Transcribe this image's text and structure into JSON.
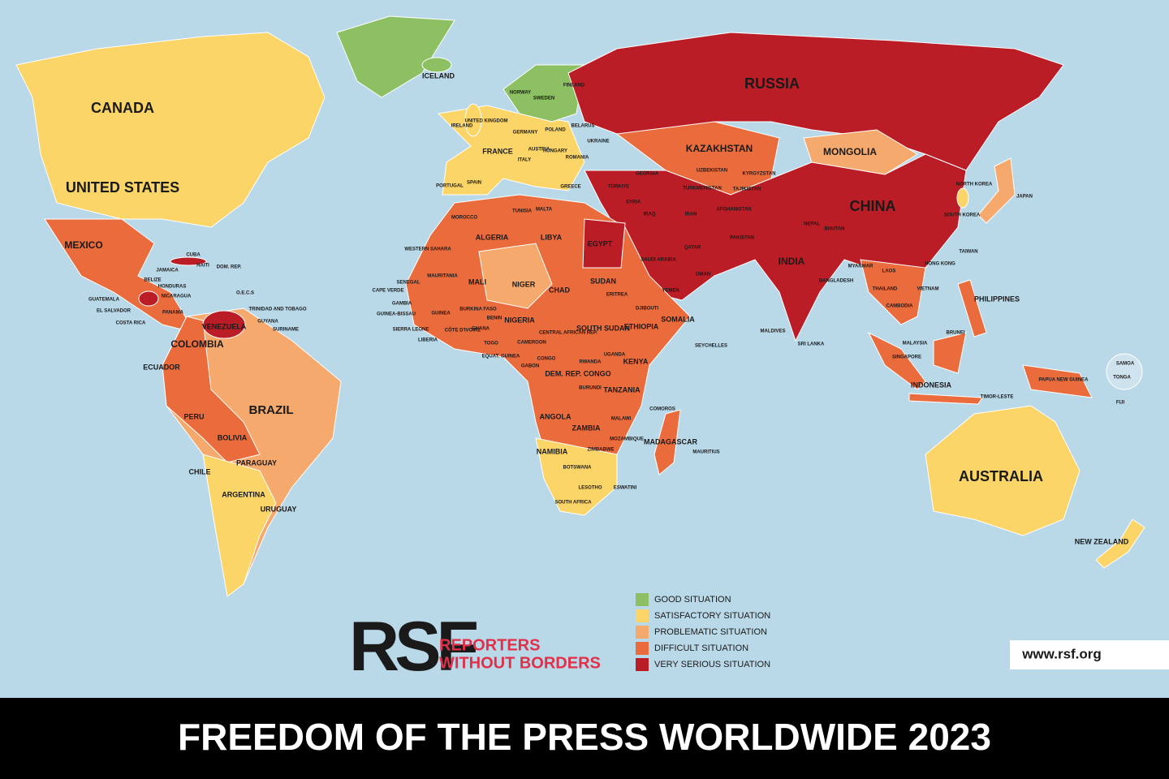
{
  "header": {
    "title": "FREEDOM OF THE PRESS WORLDWIDE 2023"
  },
  "logo": {
    "mark": "RSF",
    "line1": "REPORTERS",
    "line2": "WITHOUT BORDERS"
  },
  "url": "www.rsf.org",
  "legend": {
    "items": [
      {
        "label": "GOOD SITUATION",
        "color": "#8cc063"
      },
      {
        "label": "SATISFACTORY SITUATION",
        "color": "#fbd568"
      },
      {
        "label": "PROBLEMATIC SITUATION",
        "color": "#f6a96c"
      },
      {
        "label": "DIFFICULT SITUATION",
        "color": "#ea6b3c"
      },
      {
        "label": "VERY SERIOUS SITUATION",
        "color": "#bb1d26"
      }
    ]
  },
  "map": {
    "labels": [
      "CANADA",
      "UNITED STATES",
      "MEXICO",
      "CUBA",
      "JAMAICA",
      "HAITI",
      "DOM. REP.",
      "BELIZE",
      "HONDURAS",
      "GUATEMALA",
      "NICARAGUA",
      "EL SALVADOR",
      "PANAMA",
      "COSTA RICA",
      "O.E.C.S",
      "TRINIDAD AND TOBAGO",
      "GUYANA",
      "SURINAME",
      "VENEZUELA",
      "COLOMBIA",
      "ECUADOR",
      "BRAZIL",
      "PERU",
      "BOLIVIA",
      "PARAGUAY",
      "CHILE",
      "ARGENTINA",
      "URUGUAY",
      "ICELAND",
      "NORWAY",
      "SWEDEN",
      "FINLAND",
      "UNITED KINGDOM",
      "IRELAND",
      "POLAND",
      "GERMANY",
      "BELARUS",
      "UKRAINE",
      "FRANCE",
      "AUSTRIA",
      "HUNGARY",
      "ROMANIA",
      "ITALY",
      "SPAIN",
      "PORTUGAL",
      "GREECE",
      "TÜRKIYE",
      "GEORGIA",
      "SYRIA",
      "IRAQ",
      "IRAN",
      "KAZAKHSTAN",
      "UZBEKISTAN",
      "KYRGYZSTAN",
      "TURKMENISTAN",
      "TAJIKISTAN",
      "AFGHANISTAN",
      "PAKISTAN",
      "INDIA",
      "NEPAL",
      "BHUTAN",
      "BANGLADESH",
      "MYANMAR",
      "CHINA",
      "MONGOLIA",
      "RUSSIA",
      "NORTH KOREA",
      "SOUTH KOREA",
      "JAPAN",
      "TAIWAN",
      "HONG KONG",
      "LAOS",
      "THAILAND",
      "VIETNAM",
      "CAMBODIA",
      "PHILIPPINES",
      "MALAYSIA",
      "BRUNEI",
      "SINGAPORE",
      "INDONESIA",
      "TIMOR-LESTE",
      "PAPUA NEW GUINEA",
      "AUSTRALIA",
      "NEW ZEALAND",
      "SAMOA",
      "TONGA",
      "FIJI",
      "SRI LANKA",
      "MALDIVES",
      "SEYCHELLES",
      "SAUDI ARABIA",
      "YEMEN",
      "OMAN",
      "QATAR",
      "EGYPT",
      "LIBYA",
      "TUNISIA",
      "MALTA",
      "MOROCCO",
      "ALGERIA",
      "WESTERN SAHARA",
      "MAURITANIA",
      "MALI",
      "NIGER",
      "CHAD",
      "SUDAN",
      "ERITREA",
      "DJIBOUTI",
      "SOMALIA",
      "ETHIOPIA",
      "SOUTH SUDAN",
      "SENEGAL",
      "CAPE VERDE",
      "GAMBIA",
      "GUINEA-BISSAU",
      "GUINEA",
      "BURKINA FASO",
      "SIERRA LEONE",
      "LIBERIA",
      "CÔTE D'IVOIRE",
      "GHANA",
      "TOGO",
      "BENIN",
      "NIGERIA",
      "CAMEROON",
      "CENTRAL AFRICAN REP.",
      "EQUAT. GUINEA",
      "GABON",
      "CONGO",
      "DEM. REP. CONGO",
      "RWANDA",
      "UGANDA",
      "KENYA",
      "BURUNDI",
      "TANZANIA",
      "ANGOLA",
      "ZAMBIA",
      "MALAWI",
      "MOZAMBIQUE",
      "ZIMBABWE",
      "COMOROS",
      "MADAGASCAR",
      "MAURITIUS",
      "NAMIBIA",
      "BOTSWANA",
      "LESOTHO",
      "ESWATINI",
      "SOUTH AFRICA"
    ]
  }
}
